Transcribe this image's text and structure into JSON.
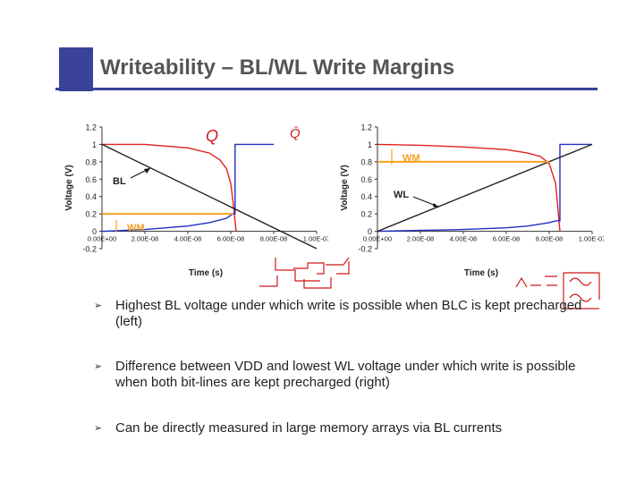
{
  "slide": {
    "title": "Writeability – BL/WL Write Margins",
    "accent": "#3a4299"
  },
  "chart_data": [
    {
      "type": "line",
      "xlabel": "Time (s)",
      "ylabel": "Voltage (V)",
      "xlim": [
        0,
        1e-07
      ],
      "ylim": [
        -0.2,
        1.2
      ],
      "x_tick_labels": [
        "0.00E+00",
        "2.00E-08",
        "4.00E-08",
        "6.00E-08",
        "8.00E-08",
        "1.00E-07"
      ],
      "y_tick_labels": [
        "1.2",
        "1",
        "0.8",
        "0.6",
        "0.4",
        "0.2",
        "0",
        "-0.2"
      ],
      "annotations": [
        "BL",
        "WM",
        "Q",
        "Q̄"
      ],
      "series": [
        {
          "color": "#e02020",
          "x": [
            0,
            2e-08,
            4e-08,
            5e-08,
            5.5e-08,
            5.8e-08,
            6e-08,
            6.1e-08,
            6.2e-08,
            6.25e-08
          ],
          "y": [
            1.0,
            1.0,
            0.96,
            0.9,
            0.82,
            0.72,
            0.55,
            0.35,
            0.12,
            0.0
          ]
        },
        {
          "color": "#2030c0",
          "x": [
            0,
            2e-08,
            4e-08,
            5e-08,
            5.8e-08,
            6.1e-08,
            6.15e-08,
            6.2e-08,
            6.2e-08,
            6.5e-08,
            7e-08,
            8e-08
          ],
          "y": [
            0.0,
            0.02,
            0.06,
            0.1,
            0.15,
            0.2,
            0.2,
            0.2,
            1.0,
            1.0,
            1.0,
            1.0
          ]
        },
        {
          "color": "#222222",
          "x": [
            0,
            1e-07
          ],
          "y": [
            1.0,
            -0.2
          ]
        }
      ],
      "reference_lines": [
        {
          "color": "#f5a020",
          "orientation": "horizontal",
          "value": 0.2
        }
      ]
    },
    {
      "type": "line",
      "xlabel": "Time (s)",
      "ylabel": "Voltage (V)",
      "xlim": [
        0,
        1e-07
      ],
      "ylim": [
        -0.2,
        1.2
      ],
      "x_tick_labels": [
        "0.00E+00",
        "2.00E-08",
        "4.00E-08",
        "6.00E-08",
        "8.00E-08",
        "1.00E-07"
      ],
      "y_tick_labels": [
        "1.2",
        "1",
        "0.8",
        "0.6",
        "0.4",
        "0.2",
        "0",
        "-0.2"
      ],
      "annotations": [
        "WM",
        "WL"
      ],
      "series": [
        {
          "color": "#e02020",
          "x": [
            0,
            2e-08,
            4e-08,
            6e-08,
            7e-08,
            7.6e-08,
            8e-08,
            8.3e-08,
            8.5e-08
          ],
          "y": [
            1.0,
            0.99,
            0.97,
            0.94,
            0.9,
            0.86,
            0.78,
            0.55,
            0.0
          ]
        },
        {
          "color": "#2030c0",
          "x": [
            0,
            2e-08,
            4e-08,
            6e-08,
            7e-08,
            8e-08,
            8.3e-08,
            8.5e-08,
            8.5e-08,
            9e-08,
            1e-07
          ],
          "y": [
            0.0,
            0.01,
            0.02,
            0.04,
            0.06,
            0.1,
            0.12,
            0.12,
            1.0,
            1.0,
            1.0
          ]
        },
        {
          "color": "#222222",
          "x": [
            0,
            1e-07
          ],
          "y": [
            0.0,
            1.0
          ]
        }
      ],
      "reference_lines": [
        {
          "color": "#f5a020",
          "orientation": "horizontal",
          "value": 0.8
        }
      ]
    }
  ],
  "bullets": [
    {
      "text": "Highest BL voltage under which write is possible when BLC is kept precharged (left)"
    },
    {
      "text": "Difference between VDD and lowest WL voltage under which write is possible when both bit-lines are kept precharged (right)"
    },
    {
      "text": "Can be directly measured in large memory arrays via BL currents"
    }
  ],
  "bullet_glyph": "➢"
}
